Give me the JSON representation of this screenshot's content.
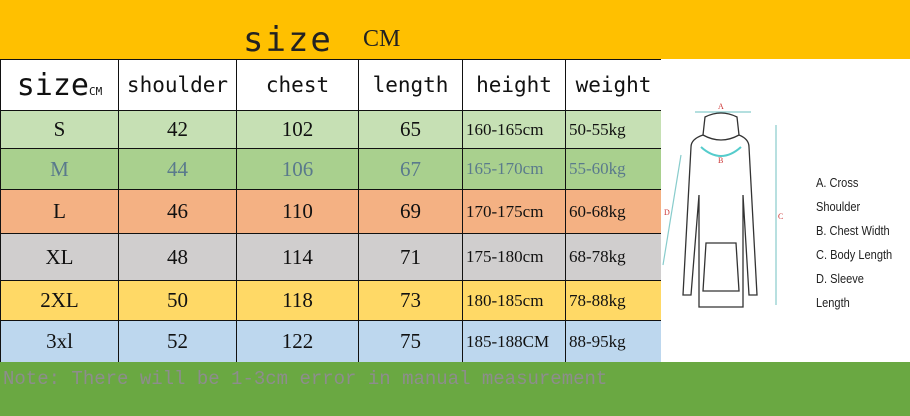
{
  "header": {
    "title": "size",
    "unit": "CM"
  },
  "table": {
    "columns": [
      "size",
      "shoulder",
      "chest",
      "length",
      "height",
      "weight"
    ],
    "first_col_suffix": "CM",
    "rows": [
      {
        "color": "#c6e0b4",
        "text_color": "#111111",
        "cells": [
          "S",
          "42",
          "102",
          "65",
          "160-165cm",
          "50-55kg"
        ]
      },
      {
        "color": "#a9d08e",
        "text_color": "#5a7a8c",
        "cells": [
          "M",
          "44",
          "106",
          "67",
          "165-170cm",
          "55-60kg"
        ]
      },
      {
        "color": "#f4b183",
        "text_color": "#111111",
        "cells": [
          "L",
          "46",
          "110",
          "69",
          "170-175cm",
          "60-68kg"
        ]
      },
      {
        "color": "#d0cece",
        "text_color": "#111111",
        "cells": [
          "XL",
          "48",
          "114",
          "71",
          "175-180cm",
          "68-78kg"
        ]
      },
      {
        "color": "#ffd966",
        "text_color": "#111111",
        "cells": [
          "2XL",
          "50",
          "118",
          "73",
          "180-185cm",
          "78-88kg"
        ]
      },
      {
        "color": "#bdd7ee",
        "text_color": "#111111",
        "cells": [
          "3xl",
          "52",
          "122",
          "75",
          "185-188CM",
          "88-95kg"
        ]
      }
    ]
  },
  "diagram": {
    "markers": [
      "A",
      "B",
      "C",
      "D"
    ],
    "legend": [
      "A. Cross Shoulder",
      "B. Chest Width",
      "C. Body Length",
      "D. Sleeve Length"
    ]
  },
  "note": "Note: There will be 1-3cm error in manual measurement",
  "colors": {
    "top_band": "#ffc000",
    "bottom_band": "#6aa842"
  }
}
